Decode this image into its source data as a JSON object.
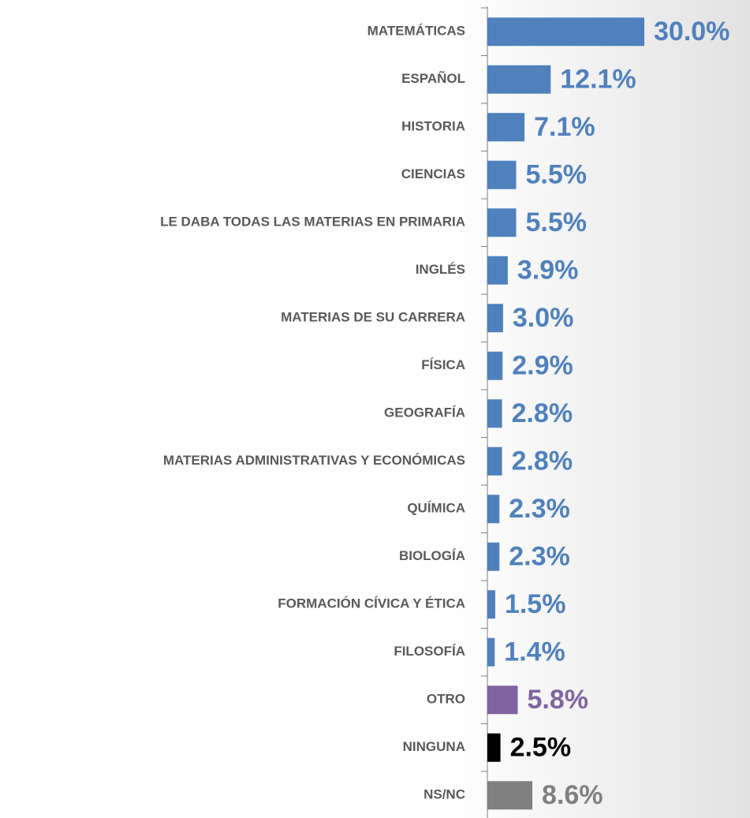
{
  "chart_data": {
    "type": "bar",
    "orientation": "horizontal",
    "categories": [
      "MATEMÁTICAS",
      "ESPAÑOL",
      "HISTORIA",
      "CIENCIAS",
      "LE DABA TODAS LAS MATERIAS EN PRIMARIA",
      "INGLÉS",
      "MATERIAS DE SU CARRERA",
      "FÍSICA",
      "GEOGRAFÍA",
      "MATERIAS ADMINISTRATIVAS Y ECONÓMICAS",
      "QUÍMICA",
      "BIOLOGÍA",
      "FORMACIÓN CÍVICA Y ÉTICA",
      "FILOSOFÍA",
      "OTRO",
      "NINGUNA",
      "NS/NC"
    ],
    "values": [
      30.0,
      12.1,
      7.1,
      5.5,
      5.5,
      3.9,
      3.0,
      2.9,
      2.8,
      2.8,
      2.3,
      2.3,
      1.5,
      1.4,
      5.8,
      2.5,
      8.6
    ],
    "value_labels": [
      "30.0%",
      "12.1%",
      "7.1%",
      "5.5%",
      "5.5%",
      "3.9%",
      "3.0%",
      "2.9%",
      "2.8%",
      "2.8%",
      "2.3%",
      "2.3%",
      "1.5%",
      "1.4%",
      "5.8%",
      "2.5%",
      "8.6%"
    ],
    "colors": [
      "#4f81bd",
      "#4f81bd",
      "#4f81bd",
      "#4f81bd",
      "#4f81bd",
      "#4f81bd",
      "#4f81bd",
      "#4f81bd",
      "#4f81bd",
      "#4f81bd",
      "#4f81bd",
      "#4f81bd",
      "#4f81bd",
      "#4f81bd",
      "#8064a2",
      "#000000",
      "#808080"
    ]
  }
}
